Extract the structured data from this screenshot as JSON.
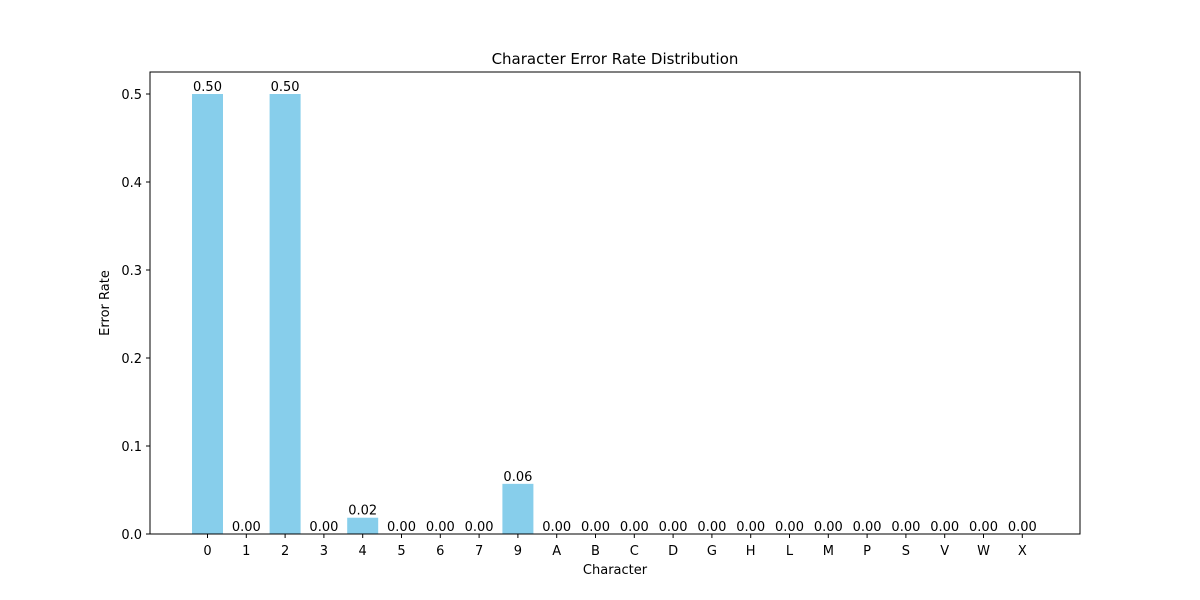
{
  "chart_data": {
    "type": "bar",
    "title": "Character Error Rate Distribution",
    "xlabel": "Character",
    "ylabel": "Error Rate",
    "categories": [
      "0",
      "1",
      "2",
      "3",
      "4",
      "5",
      "6",
      "7",
      "9",
      "A",
      "B",
      "C",
      "D",
      "G",
      "H",
      "L",
      "M",
      "P",
      "S",
      "V",
      "W",
      "X"
    ],
    "values": [
      0.5,
      0.0,
      0.5,
      0.0,
      0.0185,
      0.0,
      0.0,
      0.0,
      0.057,
      0.0,
      0.0,
      0.0,
      0.0,
      0.0,
      0.0,
      0.0,
      0.0,
      0.0,
      0.0,
      0.0,
      0.0,
      0.0
    ],
    "data_labels": [
      "0.50",
      "0.00",
      "0.50",
      "0.00",
      "0.02",
      "0.00",
      "0.00",
      "0.00",
      "0.06",
      "0.00",
      "0.00",
      "0.00",
      "0.00",
      "0.00",
      "0.00",
      "0.00",
      "0.00",
      "0.00",
      "0.00",
      "0.00",
      "0.00",
      "0.00"
    ],
    "yticks": [
      0.0,
      0.1,
      0.2,
      0.3,
      0.4,
      0.5
    ],
    "ytick_labels": [
      "0.0",
      "0.1",
      "0.2",
      "0.3",
      "0.4",
      "0.5"
    ],
    "ylim": [
      0,
      0.525
    ],
    "grid": false,
    "legend": "none",
    "bar_color": "#87CEEB"
  }
}
